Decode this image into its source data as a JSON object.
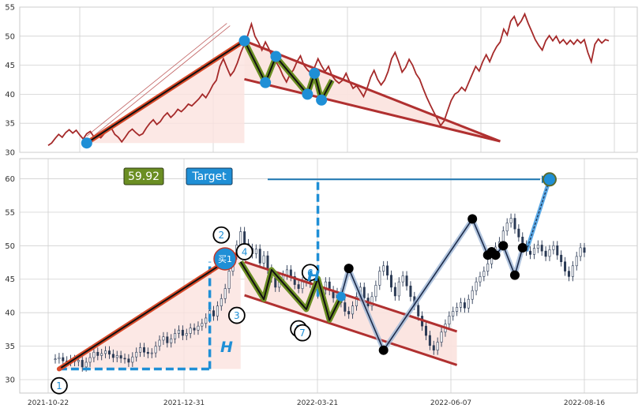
{
  "chart_data": [
    {
      "type": "line",
      "panel": "top",
      "ylim": [
        30,
        55
      ],
      "yticks": [
        "30",
        "35",
        "40",
        "45",
        "50",
        "55"
      ],
      "grid": true,
      "series": [
        {
          "color": "#a52a2a",
          "values": [
            31.2,
            31.6,
            32.4,
            33.1,
            32.6,
            33.4,
            33.9,
            33.3,
            33.8,
            33.0,
            32.3,
            33.2,
            33.6,
            32.7,
            32.9,
            32.5,
            33.2,
            33.7,
            34.2,
            33.1,
            32.6,
            31.8,
            32.6,
            33.5,
            34.0,
            33.4,
            32.9,
            33.2,
            34.2,
            35.0,
            35.6,
            34.8,
            35.3,
            36.2,
            36.8,
            36.0,
            36.6,
            37.4,
            37.0,
            37.6,
            38.3,
            38.0,
            38.6,
            39.2,
            40.0,
            39.4,
            40.4,
            41.6,
            42.4,
            44.8,
            46.1,
            44.6,
            43.2,
            44.0,
            45.4,
            47.2,
            48.6,
            50.2,
            52.1,
            50.0,
            48.9,
            47.6,
            49.0,
            47.8,
            46.4,
            45.6,
            44.6,
            43.2,
            42.1,
            43.4,
            44.2,
            45.6,
            46.6,
            45.0,
            44.2,
            43.6,
            44.6,
            46.1,
            44.9,
            43.9,
            44.8,
            43.2,
            42.4,
            41.9,
            42.4,
            43.6,
            42.2,
            41.0,
            41.5,
            40.6,
            39.6,
            41.0,
            42.9,
            44.1,
            42.6,
            41.6,
            42.4,
            43.9,
            46.1,
            47.2,
            45.6,
            43.8,
            44.6,
            46.0,
            45.0,
            43.5,
            42.6,
            41.0,
            39.5,
            38.2,
            37.0,
            35.8,
            34.6,
            35.4,
            37.2,
            38.9,
            40.0,
            40.4,
            41.2,
            40.6,
            42.0,
            43.4,
            44.8,
            44.0,
            45.6,
            46.8,
            45.6,
            47.1,
            48.2,
            49.0,
            51.2,
            50.2,
            52.6,
            53.4,
            51.8,
            52.6,
            53.8,
            52.2,
            50.8,
            49.4,
            48.4,
            47.6,
            49.2,
            50.1,
            49.2,
            50.0,
            48.8,
            49.4,
            48.6,
            49.3,
            48.6,
            49.4,
            48.8,
            49.4,
            47.2,
            45.6,
            48.6,
            49.5,
            48.8,
            49.4,
            49.2
          ]
        }
      ],
      "overlays": {
        "trend_line": [
          [
            11,
            31.6
          ],
          [
            56,
            49.2
          ]
        ],
        "upper_line": [
          [
            56,
            49.2
          ],
          [
            129,
            31.9
          ]
        ],
        "lower_line": [
          [
            56,
            42.6
          ],
          [
            129,
            31.9
          ]
        ],
        "zigzag": [
          [
            56,
            49.2
          ],
          [
            62,
            42.0
          ],
          [
            65,
            46.5
          ],
          [
            74,
            40.0
          ],
          [
            76,
            43.6
          ],
          [
            78,
            39.0
          ],
          [
            81,
            42.4
          ]
        ],
        "markers": [
          [
            11,
            31.6
          ],
          [
            56,
            49.2
          ],
          [
            62,
            42.0
          ],
          [
            65,
            46.5
          ],
          [
            74,
            40.0
          ],
          [
            76,
            43.6
          ],
          [
            78,
            39.0
          ]
        ],
        "target_arrow": [
          [
            11,
            32.8
          ],
          [
            51,
            52.2
          ]
        ]
      }
    },
    {
      "type": "line",
      "panel": "bottom",
      "ylim": [
        28,
        63
      ],
      "yticks": [
        "30",
        "35",
        "40",
        "45",
        "50",
        "55",
        "60"
      ],
      "xticks": [
        "2021-10-22",
        "2021-12-31",
        "2022-03-21",
        "2022-06-07",
        "2022-08-16"
      ],
      "grid": true,
      "series": [
        {
          "values": [
            33.1,
            33.3,
            32.8,
            32.7,
            33.0,
            32.7,
            32.9,
            31.9,
            32.6,
            33.3,
            34.1,
            33.6,
            33.9,
            34.3,
            33.8,
            33.3,
            33.6,
            33.2,
            33.1,
            32.6,
            33.4,
            34.1,
            34.8,
            34.1,
            33.9,
            34.0,
            35.0,
            35.9,
            36.4,
            35.5,
            36.1,
            36.9,
            37.4,
            36.6,
            36.9,
            37.7,
            37.4,
            38.0,
            38.4,
            39.2,
            40.3,
            39.5,
            41.0,
            42.1,
            43.6,
            46.2,
            48.6,
            50.1,
            52.1,
            50.3,
            49.6,
            48.8,
            49.5,
            47.4,
            48.5,
            46.5,
            45.2,
            43.8,
            44.6,
            45.6,
            46.4,
            45.4,
            44.2,
            43.6,
            44.6,
            45.7,
            44.4,
            43.2,
            42.8,
            43.4,
            44.6,
            43.3,
            42.2,
            43.0,
            41.5,
            40.2,
            39.8,
            41.0,
            42.4,
            43.8,
            42.2,
            41.0,
            42.4,
            44.1,
            46.2,
            47.0,
            45.6,
            43.8,
            42.5,
            44.6,
            45.5,
            44.0,
            42.4,
            41.1,
            39.5,
            38.0,
            36.6,
            35.1,
            34.4,
            35.6,
            37.1,
            38.3,
            39.5,
            40.2,
            40.8,
            41.5,
            40.7,
            42.0,
            43.3,
            44.6,
            45.4,
            46.2,
            47.3,
            48.6,
            49.8,
            50.6,
            52.2,
            53.4,
            54.1,
            52.5,
            51.3,
            50.1,
            49.2,
            48.7,
            49.6,
            50.1,
            49.2,
            48.4,
            49.4,
            50.0,
            48.6,
            47.6,
            46.2,
            45.4,
            47.0,
            48.4,
            49.7,
            49.0
          ]
        }
      ],
      "zigzag_points": [
        [
          1,
          31.6
        ],
        [
          48,
          49.1
        ]
      ],
      "overlays": {
        "trend_line": [
          [
            1,
            31.6
          ],
          [
            48,
            49.1
          ]
        ],
        "upper_line": [
          [
            49,
            47.6
          ],
          [
            104,
            37.2
          ]
        ],
        "lower_line": [
          [
            49,
            42.6
          ],
          [
            104,
            32.2
          ]
        ],
        "triangle_fill": [
          [
            49,
            47.6
          ],
          [
            104,
            37.2
          ],
          [
            104,
            32.2
          ],
          [
            49,
            42.6
          ]
        ],
        "green_zigzag": [
          [
            48,
            47.6
          ],
          [
            54,
            42.0
          ],
          [
            56,
            46.4
          ],
          [
            65,
            40.5
          ],
          [
            68,
            45.1
          ],
          [
            71,
            38.9
          ],
          [
            74,
            42.4
          ]
        ],
        "blue_zigzag": [
          [
            74,
            42.4
          ],
          [
            76,
            46.6
          ],
          [
            85,
            34.4
          ],
          [
            108,
            54.0
          ],
          [
            112,
            48.6
          ],
          [
            113,
            49.1
          ],
          [
            114,
            48.6
          ],
          [
            116,
            50.0
          ],
          [
            119,
            45.6
          ],
          [
            121,
            49.7
          ]
        ],
        "projection": [
          [
            122,
            49.2
          ],
          [
            128,
            59.9
          ]
        ],
        "target_arrow": [
          [
            55,
            59.9
          ],
          [
            128,
            59.9
          ]
        ],
        "measure_line_h1": [
          [
            1,
            31.6
          ],
          [
            40,
            31.6
          ]
        ],
        "measure_line_v1": [
          [
            40,
            31.6
          ],
          [
            40,
            47.6
          ]
        ],
        "measure_line_v2": [
          [
            68,
            42.4
          ],
          [
            68,
            59.9
          ]
        ]
      },
      "circle_labels": [
        {
          "label": "1",
          "x": 1,
          "y": 29.1
        },
        {
          "label": "2",
          "x": 43,
          "y": 51.6
        },
        {
          "label": "3",
          "x": 47,
          "y": 39.6
        },
        {
          "label": "4",
          "x": 49,
          "y": 49.1
        },
        {
          "label": "5",
          "x": 63,
          "y": 37.6
        },
        {
          "label": "6",
          "x": 66,
          "y": 46.0
        },
        {
          "label": "7",
          "x": 64,
          "y": 37.0
        }
      ],
      "buy_label": "买1",
      "target_label": "Target",
      "value_label": "59.92",
      "h_label": "H"
    }
  ],
  "colors": {
    "price_line": "#a52a2a",
    "trend_red": "#d84a2a",
    "triangle": "#b03030",
    "triangle_fill": "#fbe2de",
    "green_zigzag": "#6b8e23",
    "blue_marker": "#1f8fd6",
    "blue_zigzag": "#1c2b4a",
    "blue_glow": "#9fb6d6",
    "grid": "#d0d0d0",
    "panel_border": "#c8c8c8"
  }
}
